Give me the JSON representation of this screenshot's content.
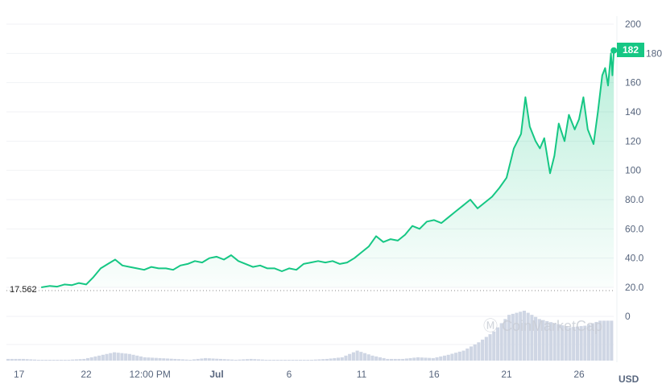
{
  "chart_data": {
    "type": "line",
    "currency_label": "USD",
    "current_price_label": "182",
    "start_price_label": "17.562",
    "watermark": "CoinMarketCap",
    "line_color": "#16c784",
    "volume_color": "#cfd6e4",
    "ylim": [
      20,
      200
    ],
    "y_ticks": [
      "200",
      "180",
      "160",
      "140",
      "120",
      "100",
      "80.0",
      "60.0",
      "40.0",
      "20.0"
    ],
    "y_tick_values": [
      200,
      180,
      160,
      140,
      120,
      100,
      80,
      60,
      40,
      20
    ],
    "volume_zero_label": "0",
    "x_ticks": [
      {
        "label": "17",
        "day": 0
      },
      {
        "label": "22",
        "day": 5
      },
      {
        "label": "12:00 PM",
        "day": 9.4
      },
      {
        "label": "Jul",
        "day": 14
      },
      {
        "label": "6",
        "day": 19
      },
      {
        "label": "11",
        "day": 24
      },
      {
        "label": "16",
        "day": 29
      },
      {
        "label": "21",
        "day": 34
      },
      {
        "label": "26",
        "day": 39
      }
    ],
    "price": [
      [
        1.9,
        20
      ],
      [
        2.5,
        21
      ],
      [
        3,
        20.5
      ],
      [
        3.5,
        22
      ],
      [
        4,
        21.5
      ],
      [
        4.5,
        23
      ],
      [
        5,
        22
      ],
      [
        5.5,
        27
      ],
      [
        6,
        33
      ],
      [
        6.5,
        36
      ],
      [
        7,
        39
      ],
      [
        7.5,
        35
      ],
      [
        8,
        34
      ],
      [
        8.5,
        33
      ],
      [
        9,
        32
      ],
      [
        9.5,
        34
      ],
      [
        10,
        33
      ],
      [
        10.5,
        33
      ],
      [
        11,
        32
      ],
      [
        11.5,
        35
      ],
      [
        12,
        36
      ],
      [
        12.5,
        38
      ],
      [
        13,
        37
      ],
      [
        13.5,
        40
      ],
      [
        14,
        41
      ],
      [
        14.5,
        39
      ],
      [
        15,
        42
      ],
      [
        15.5,
        38
      ],
      [
        16,
        36
      ],
      [
        16.5,
        34
      ],
      [
        17,
        35
      ],
      [
        17.5,
        33
      ],
      [
        18,
        33
      ],
      [
        18.5,
        31
      ],
      [
        19,
        33
      ],
      [
        19.5,
        32
      ],
      [
        20,
        36
      ],
      [
        20.5,
        37
      ],
      [
        21,
        38
      ],
      [
        21.5,
        37
      ],
      [
        22,
        38
      ],
      [
        22.5,
        36
      ],
      [
        23,
        37
      ],
      [
        23.5,
        40
      ],
      [
        24,
        44
      ],
      [
        24.5,
        48
      ],
      [
        25,
        55
      ],
      [
        25.5,
        51
      ],
      [
        26,
        53
      ],
      [
        26.5,
        52
      ],
      [
        27,
        56
      ],
      [
        27.5,
        62
      ],
      [
        28,
        60
      ],
      [
        28.5,
        65
      ],
      [
        29,
        66
      ],
      [
        29.5,
        64
      ],
      [
        30,
        68
      ],
      [
        30.5,
        72
      ],
      [
        31,
        76
      ],
      [
        31.5,
        80
      ],
      [
        32,
        74
      ],
      [
        32.5,
        78
      ],
      [
        33,
        82
      ],
      [
        33.5,
        88
      ],
      [
        34,
        95
      ],
      [
        34.5,
        115
      ],
      [
        35,
        125
      ],
      [
        35.3,
        150
      ],
      [
        35.6,
        130
      ],
      [
        36,
        120
      ],
      [
        36.3,
        115
      ],
      [
        36.6,
        122
      ],
      [
        37,
        98
      ],
      [
        37.3,
        110
      ],
      [
        37.6,
        132
      ],
      [
        38,
        120
      ],
      [
        38.3,
        138
      ],
      [
        38.7,
        128
      ],
      [
        39,
        135
      ],
      [
        39.3,
        150
      ],
      [
        39.6,
        128
      ],
      [
        40,
        118
      ],
      [
        40.3,
        140
      ],
      [
        40.6,
        165
      ],
      [
        40.8,
        170
      ],
      [
        41,
        158
      ],
      [
        41.2,
        180
      ],
      [
        41.3,
        165
      ],
      [
        41.4,
        182
      ]
    ],
    "volume": [
      2,
      2,
      1,
      1,
      1,
      2,
      6,
      10,
      8,
      4,
      3,
      2,
      1,
      3,
      2,
      1,
      2,
      1,
      1,
      1,
      1,
      2,
      4,
      12,
      6,
      2,
      2,
      4,
      3,
      7,
      12,
      22,
      35,
      55,
      60,
      50,
      45,
      40,
      42,
      48
    ]
  }
}
